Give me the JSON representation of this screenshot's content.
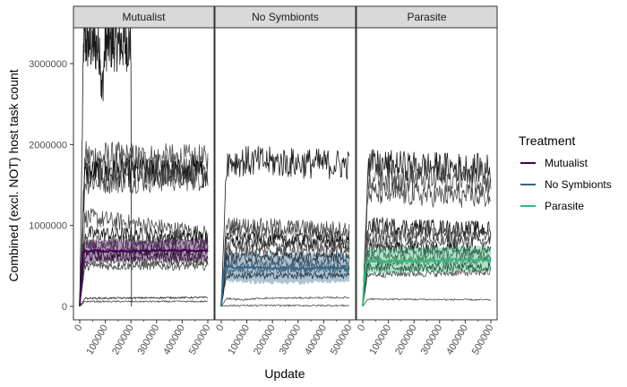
{
  "chart_data": {
    "type": "line",
    "xlabel": "Update",
    "ylabel": "Combined (excl. NOT) host task count",
    "xlim": [
      0,
      500000
    ],
    "ylim": [
      0,
      3300000
    ],
    "x_ticks": [
      0,
      100000,
      200000,
      300000,
      400000,
      500000
    ],
    "x_tick_labels": [
      "0",
      "100000",
      "200000",
      "300000",
      "400000",
      "500000"
    ],
    "y_ticks": [
      0,
      1000000,
      2000000,
      3000000
    ],
    "y_tick_labels": [
      "0",
      "1000000",
      "2000000",
      "3000000"
    ],
    "grid": false,
    "legend": {
      "title": "Treatment",
      "placement": "right",
      "entries": [
        {
          "label": "Mutualist",
          "color": "#440154"
        },
        {
          "label": "No Symbionts",
          "color": "#31688e"
        },
        {
          "label": "Parasite",
          "color": "#35b779"
        }
      ]
    },
    "panels": [
      {
        "name": "Mutualist",
        "color": "#440154",
        "mean": {
          "x": [
            0,
            10000,
            20000,
            50000,
            100000,
            200000,
            300000,
            400000,
            500000
          ],
          "y": [
            0,
            650000,
            680000,
            690000,
            680000,
            680000,
            690000,
            690000,
            690000
          ]
        },
        "ribbon": {
          "lower": [
            0,
            520000,
            550000,
            560000,
            560000,
            560000,
            570000,
            560000,
            570000
          ],
          "upper": [
            0,
            780000,
            800000,
            810000,
            810000,
            810000,
            810000,
            820000,
            820000
          ]
        },
        "replicates": [
          {
            "x": [
              0,
              15000,
              20000,
              80000,
              85000,
              100000,
              150000,
              200000,
              500000
            ],
            "y": [
              0,
              3250000,
              3250000,
              3200000,
              2550000,
              3250000,
              3250000,
              3250000,
              3250000
            ],
            "end": 200000
          },
          {
            "x": [
              0,
              20000,
              500000
            ],
            "y": [
              0,
              1850000,
              1800000
            ]
          },
          {
            "x": [
              0,
              20000,
              500000
            ],
            "y": [
              0,
              1750000,
              1700000
            ]
          },
          {
            "x": [
              0,
              20000,
              500000
            ],
            "y": [
              0,
              1650000,
              1650000
            ]
          },
          {
            "x": [
              0,
              20000,
              500000
            ],
            "y": [
              0,
              1550000,
              1600000
            ]
          },
          {
            "x": [
              0,
              20000,
              500000
            ],
            "y": [
              0,
              1100000,
              900000
            ]
          },
          {
            "x": [
              0,
              20000,
              500000
            ],
            "y": [
              0,
              900000,
              850000
            ]
          },
          {
            "x": [
              0,
              20000,
              500000
            ],
            "y": [
              0,
              800000,
              780000
            ]
          },
          {
            "x": [
              0,
              20000,
              500000
            ],
            "y": [
              0,
              700000,
              700000
            ]
          },
          {
            "x": [
              0,
              20000,
              500000
            ],
            "y": [
              0,
              620000,
              620000
            ]
          },
          {
            "x": [
              0,
              20000,
              500000
            ],
            "y": [
              0,
              550000,
              560000
            ]
          },
          {
            "x": [
              0,
              20000,
              500000
            ],
            "y": [
              0,
              500000,
              500000
            ]
          },
          {
            "x": [
              0,
              20000,
              500000
            ],
            "y": [
              0,
              100000,
              110000
            ]
          },
          {
            "x": [
              0,
              20000,
              500000
            ],
            "y": [
              0,
              60000,
              60000
            ]
          }
        ]
      },
      {
        "name": "No Symbionts",
        "color": "#31688e",
        "mean": {
          "x": [
            0,
            10000,
            20000,
            50000,
            100000,
            200000,
            300000,
            400000,
            500000
          ],
          "y": [
            0,
            470000,
            490000,
            480000,
            480000,
            470000,
            470000,
            480000,
            470000
          ]
        },
        "ribbon": {
          "lower": [
            0,
            300000,
            320000,
            300000,
            300000,
            290000,
            290000,
            300000,
            300000
          ],
          "upper": [
            0,
            640000,
            660000,
            650000,
            650000,
            640000,
            650000,
            650000,
            650000
          ]
        },
        "replicates": [
          {
            "x": [
              0,
              20000,
              500000
            ],
            "y": [
              0,
              1800000,
              1750000
            ]
          },
          {
            "x": [
              0,
              20000,
              500000
            ],
            "y": [
              0,
              1000000,
              950000
            ]
          },
          {
            "x": [
              0,
              20000,
              500000
            ],
            "y": [
              0,
              900000,
              880000
            ]
          },
          {
            "x": [
              0,
              20000,
              500000
            ],
            "y": [
              0,
              820000,
              800000
            ]
          },
          {
            "x": [
              0,
              20000,
              500000
            ],
            "y": [
              0,
              750000,
              750000
            ]
          },
          {
            "x": [
              0,
              20000,
              500000
            ],
            "y": [
              0,
              680000,
              680000
            ]
          },
          {
            "x": [
              0,
              20000,
              500000
            ],
            "y": [
              0,
              600000,
              600000
            ]
          },
          {
            "x": [
              0,
              20000,
              500000
            ],
            "y": [
              0,
              520000,
              520000
            ]
          },
          {
            "x": [
              0,
              20000,
              500000
            ],
            "y": [
              0,
              450000,
              460000
            ]
          },
          {
            "x": [
              0,
              20000,
              500000
            ],
            "y": [
              0,
              380000,
              380000
            ]
          },
          {
            "x": [
              0,
              20000,
              80000,
              150000,
              500000
            ],
            "y": [
              0,
              100000,
              80000,
              100000,
              110000
            ]
          },
          {
            "x": [
              0,
              20000,
              500000
            ],
            "y": [
              0,
              10000,
              10000
            ]
          }
        ]
      },
      {
        "name": "Parasite",
        "color": "#35b779",
        "mean": {
          "x": [
            0,
            10000,
            20000,
            50000,
            100000,
            200000,
            300000,
            400000,
            500000
          ],
          "y": [
            0,
            520000,
            560000,
            560000,
            560000,
            560000,
            570000,
            580000,
            570000
          ]
        },
        "ribbon": {
          "lower": [
            0,
            350000,
            400000,
            410000,
            410000,
            420000,
            420000,
            430000,
            430000
          ],
          "upper": [
            0,
            680000,
            720000,
            720000,
            720000,
            730000,
            730000,
            740000,
            730000
          ]
        },
        "replicates": [
          {
            "x": [
              0,
              20000,
              500000
            ],
            "y": [
              0,
              1750000,
              1700000
            ]
          },
          {
            "x": [
              0,
              20000,
              500000
            ],
            "y": [
              0,
              1600000,
              1550000
            ]
          },
          {
            "x": [
              0,
              20000,
              500000
            ],
            "y": [
              0,
              1400000,
              1350000
            ]
          },
          {
            "x": [
              0,
              20000,
              500000
            ],
            "y": [
              0,
              1000000,
              950000
            ]
          },
          {
            "x": [
              0,
              20000,
              500000
            ],
            "y": [
              0,
              900000,
              880000
            ]
          },
          {
            "x": [
              0,
              20000,
              500000
            ],
            "y": [
              0,
              800000,
              800000
            ]
          },
          {
            "x": [
              0,
              20000,
              500000
            ],
            "y": [
              0,
              720000,
              720000
            ]
          },
          {
            "x": [
              0,
              20000,
              500000
            ],
            "y": [
              0,
              640000,
              640000
            ]
          },
          {
            "x": [
              0,
              20000,
              500000
            ],
            "y": [
              0,
              560000,
              560000
            ]
          },
          {
            "x": [
              0,
              20000,
              500000
            ],
            "y": [
              0,
              480000,
              480000
            ]
          },
          {
            "x": [
              0,
              20000,
              500000
            ],
            "y": [
              0,
              400000,
              420000
            ]
          },
          {
            "x": [
              0,
              20000,
              500000
            ],
            "y": [
              0,
              90000,
              80000
            ]
          }
        ]
      }
    ]
  }
}
